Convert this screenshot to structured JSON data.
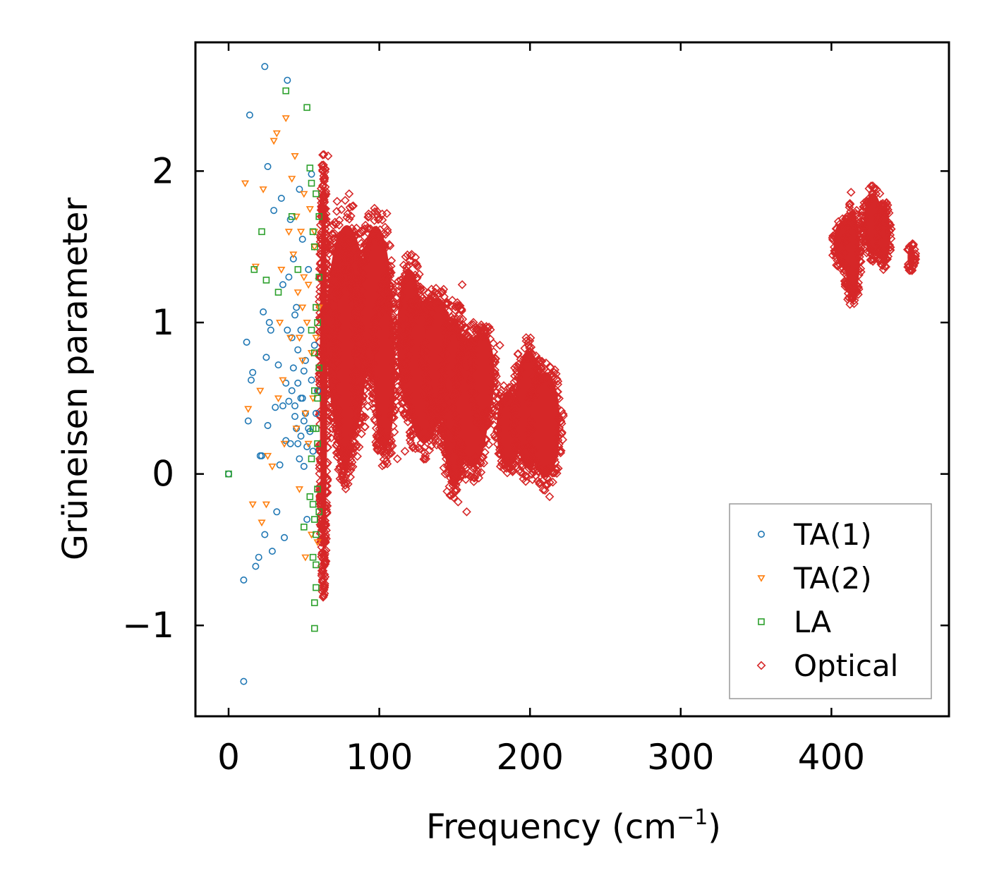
{
  "chart_data": {
    "type": "scatter",
    "xlabel": "Frequency (cm",
    "xlabel_sup": "−1",
    "xlabel_tail": ")",
    "ylabel": "Grüneisen parameter",
    "xlim": [
      -22,
      478
    ],
    "ylim": [
      -1.6,
      2.85
    ],
    "x_ticks": [
      0,
      100,
      200,
      300,
      400
    ],
    "x_tick_labels": [
      "0",
      "100",
      "200",
      "300",
      "400"
    ],
    "y_ticks": [
      -1,
      0,
      1,
      2
    ],
    "y_tick_labels": [
      "−1",
      "0",
      "1",
      "2"
    ],
    "legend_position": "lower-right",
    "series": [
      {
        "name": "TA(1)",
        "marker": "circle",
        "color": "#1f77b4",
        "points": [
          [
            0,
            0
          ],
          [
            10,
            -0.7
          ],
          [
            10,
            -1.37
          ],
          [
            12,
            0.87
          ],
          [
            13,
            0.35
          ],
          [
            14,
            2.37
          ],
          [
            15,
            0.62
          ],
          [
            16,
            0.67
          ],
          [
            18,
            -0.61
          ],
          [
            20,
            -0.55
          ],
          [
            21,
            0.12
          ],
          [
            22,
            0.12
          ],
          [
            23,
            1.07
          ],
          [
            24,
            -0.4
          ],
          [
            25,
            0.77
          ],
          [
            26,
            0.32
          ],
          [
            24,
            2.69
          ],
          [
            26,
            2.03
          ],
          [
            27,
            1.0
          ],
          [
            28,
            0.95
          ],
          [
            29,
            -0.51
          ],
          [
            30,
            1.74
          ],
          [
            31,
            0.44
          ],
          [
            32,
            -0.25
          ],
          [
            33,
            0.72
          ],
          [
            34,
            0.06
          ],
          [
            35,
            1.82
          ],
          [
            36,
            1.25
          ],
          [
            37,
            -0.42
          ],
          [
            38,
            0.22
          ],
          [
            39,
            2.6
          ],
          [
            40,
            0.48
          ],
          [
            41,
            1.68
          ],
          [
            42,
            0.9
          ],
          [
            43,
            1.42
          ],
          [
            44,
            0.38
          ],
          [
            45,
            1.1
          ],
          [
            46,
            0.2
          ],
          [
            47,
            1.88
          ],
          [
            48,
            0.5
          ],
          [
            49,
            1.55
          ],
          [
            50,
            0.05
          ],
          [
            51,
            0.75
          ],
          [
            52,
            -0.3
          ],
          [
            53,
            1.35
          ],
          [
            54,
            0.28
          ],
          [
            55,
            0.62
          ],
          [
            56,
            0.15
          ],
          [
            57,
            0.85
          ],
          [
            55,
            1.98
          ],
          [
            58,
            0.4
          ],
          [
            59,
            0.55
          ],
          [
            45,
            0.3
          ],
          [
            46,
            0.6
          ],
          [
            48,
            0.25
          ],
          [
            50,
            0.35
          ],
          [
            52,
            0.18
          ],
          [
            44,
            0.45
          ],
          [
            47,
            0.1
          ],
          [
            49,
            0.5
          ],
          [
            51,
            0.4
          ],
          [
            53,
            0.3
          ],
          [
            46,
            0.82
          ],
          [
            48,
            0.95
          ],
          [
            50,
            0.68
          ],
          [
            44,
            1.05
          ],
          [
            42,
            0.55
          ],
          [
            41,
            0.2
          ],
          [
            43,
            0.7
          ],
          [
            39,
            0.95
          ],
          [
            38,
            0.6
          ],
          [
            40,
            1.3
          ],
          [
            36,
            0.45
          ]
        ]
      },
      {
        "name": "TA(2)",
        "marker": "triangle-down",
        "color": "#ff7f0e",
        "points": [
          [
            11,
            1.92
          ],
          [
            13,
            0.43
          ],
          [
            16,
            -0.2
          ],
          [
            18,
            1.37
          ],
          [
            22,
            -0.32
          ],
          [
            23,
            1.88
          ],
          [
            26,
            0.12
          ],
          [
            30,
            2.2
          ],
          [
            32,
            2.25
          ],
          [
            34,
            1.0
          ],
          [
            35,
            1.35
          ],
          [
            36,
            0.62
          ],
          [
            38,
            2.35
          ],
          [
            40,
            1.6
          ],
          [
            41,
            0.9
          ],
          [
            42,
            1.95
          ],
          [
            44,
            2.1
          ],
          [
            45,
            0.3
          ],
          [
            46,
            1.2
          ],
          [
            47,
            -0.1
          ],
          [
            48,
            1.6
          ],
          [
            49,
            0.75
          ],
          [
            50,
            1.3
          ],
          [
            51,
            -0.55
          ],
          [
            52,
            1.0
          ],
          [
            53,
            0.2
          ],
          [
            54,
            1.75
          ],
          [
            55,
            -0.4
          ],
          [
            56,
            0.5
          ],
          [
            57,
            1.5
          ],
          [
            58,
            0.9
          ],
          [
            59,
            -0.45
          ],
          [
            60,
            1.1
          ],
          [
            43,
            1.45
          ],
          [
            37,
            0.2
          ],
          [
            33,
            0.5
          ],
          [
            29,
            0.05
          ],
          [
            25,
            -0.2
          ],
          [
            21,
            0.55
          ],
          [
            47,
            0.9
          ],
          [
            49,
            1.1
          ],
          [
            51,
            0.4
          ],
          [
            53,
            1.25
          ],
          [
            55,
            0.8
          ],
          [
            57,
            1.6
          ],
          [
            45,
            1.7
          ],
          [
            50,
            1.85
          ]
        ]
      },
      {
        "name": "LA",
        "marker": "square",
        "color": "#2ca02c",
        "points": [
          [
            0,
            0
          ],
          [
            17,
            1.35
          ],
          [
            22,
            1.6
          ],
          [
            25,
            1.28
          ],
          [
            33,
            1.2
          ],
          [
            38,
            2.53
          ],
          [
            42,
            1.7
          ],
          [
            46,
            1.35
          ],
          [
            50,
            -0.35
          ],
          [
            52,
            2.42
          ],
          [
            54,
            2.02
          ],
          [
            55,
            1.92
          ],
          [
            56,
            -0.55
          ],
          [
            57,
            -1.02
          ],
          [
            57,
            -0.85
          ],
          [
            58,
            -0.75
          ],
          [
            58,
            1.85
          ],
          [
            59,
            0.5
          ],
          [
            60,
            1.3
          ],
          [
            55,
            0.1
          ],
          [
            56,
            -0.2
          ],
          [
            57,
            0.8
          ],
          [
            58,
            1.1
          ],
          [
            59,
            -0.1
          ],
          [
            60,
            0.7
          ],
          [
            56,
            0.3
          ],
          [
            57,
            1.5
          ],
          [
            58,
            -0.4
          ],
          [
            59,
            0.2
          ],
          [
            60,
            1.7
          ],
          [
            54,
            -0.15
          ],
          [
            55,
            0.95
          ],
          [
            56,
            1.6
          ],
          [
            57,
            0.55
          ],
          [
            58,
            0.3
          ],
          [
            59,
            1.0
          ],
          [
            60,
            -0.25
          ],
          [
            58,
            -0.6
          ],
          [
            57,
            -0.3
          ]
        ]
      },
      {
        "name": "Optical",
        "marker": "diamond",
        "color": "#d62728",
        "clusters": [
          {
            "x": [
              60,
              66
            ],
            "y": [
              -0.8,
              2.1
            ]
          },
          {
            "x": [
              62,
              95
            ],
            "y": [
              0.05,
              1.8
            ]
          },
          {
            "x": [
              70,
              85
            ],
            "y": [
              -0.15,
              1.6
            ]
          },
          {
            "x": [
              85,
              110
            ],
            "y": [
              0.5,
              1.75
            ]
          },
          {
            "x": [
              95,
              112
            ],
            "y": [
              0.05,
              1.3
            ]
          },
          {
            "x": [
              110,
              130
            ],
            "y": [
              0.35,
              1.45
            ]
          },
          {
            "x": [
              115,
              145
            ],
            "y": [
              0.1,
              1.25
            ]
          },
          {
            "x": [
              128,
              150
            ],
            "y": [
              0.3,
              1.25
            ]
          },
          {
            "x": [
              140,
              160
            ],
            "y": [
              -0.2,
              1.15
            ]
          },
          {
            "x": [
              148,
              175
            ],
            "y": [
              -0.05,
              1.0
            ]
          },
          {
            "x": [
              160,
              178
            ],
            "y": [
              0.3,
              1.0
            ]
          },
          {
            "x": [
              176,
              196
            ],
            "y": [
              0.0,
              0.6
            ]
          },
          {
            "x": [
              188,
              210
            ],
            "y": [
              -0.05,
              0.9
            ]
          },
          {
            "x": [
              198,
              222
            ],
            "y": [
              -0.1,
              0.75
            ]
          },
          {
            "x": [
              400,
              415
            ],
            "y": [
              1.35,
              1.7
            ]
          },
          {
            "x": [
              408,
              420
            ],
            "y": [
              1.1,
              1.8
            ]
          },
          {
            "x": [
              420,
              435
            ],
            "y": [
              1.4,
              1.9
            ]
          },
          {
            "x": [
              430,
              440
            ],
            "y": [
              1.35,
              1.8
            ]
          },
          {
            "x": [
              450,
              456
            ],
            "y": [
              1.33,
              1.53
            ]
          }
        ],
        "outliers": [
          [
            66,
            2.1
          ],
          [
            72,
            1.8
          ],
          [
            80,
            1.85
          ],
          [
            93,
            1.62
          ],
          [
            105,
            1.72
          ],
          [
            112,
            0.1
          ],
          [
            117,
            0.15
          ],
          [
            124,
            1.43
          ],
          [
            155,
            1.25
          ],
          [
            158,
            -0.25
          ],
          [
            180,
            0.85
          ],
          [
            199,
            0.85
          ],
          [
            213,
            -0.15
          ],
          [
            413,
            1.86
          ]
        ]
      }
    ]
  }
}
